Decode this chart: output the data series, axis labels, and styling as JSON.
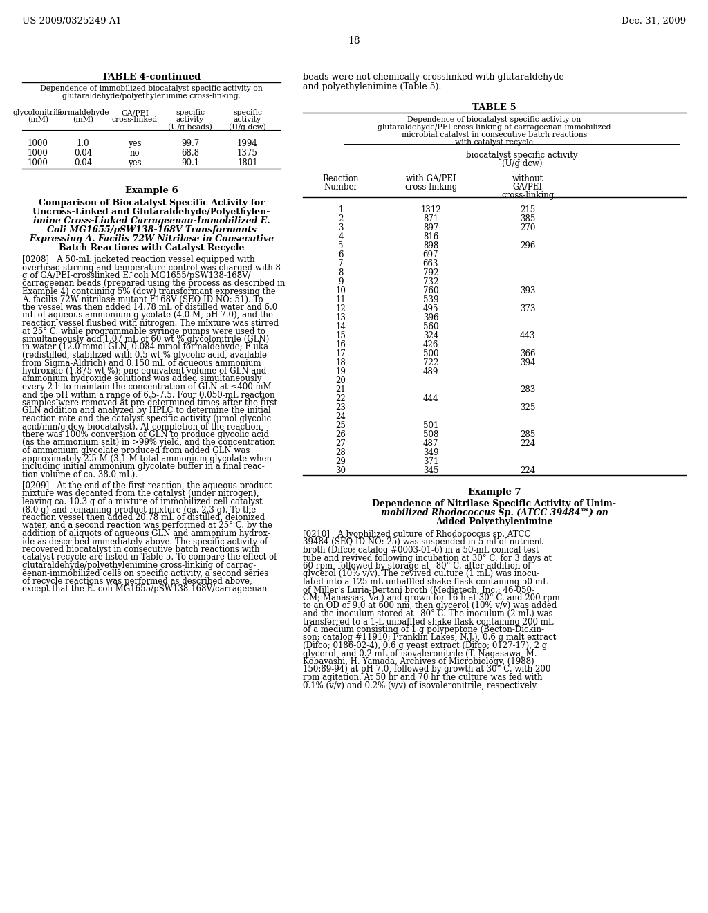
{
  "page_number": "18",
  "patent_left": "US 2009/0325249 A1",
  "patent_right": "Dec. 31, 2009",
  "bg_color": "#ffffff",
  "table4_title": "TABLE 4-continued",
  "table4_subtitle1": "Dependence of immobilized biocatalyst specific activity on",
  "table4_subtitle2": "glutaraldehyde/polyethylenimine cross-linking.",
  "table4_headers": [
    "glycolonitrile\n(mM)",
    "formaldehyde\n(mM)",
    "GA/PEI\ncross-linked",
    "specific\nactivity\n(U/g beads)",
    "specific\nactivity\n(U/g dcw)"
  ],
  "table4_rows": [
    [
      "1000",
      "1.0",
      "yes",
      "99.7",
      "1994"
    ],
    [
      "1000",
      "0.04",
      "no",
      "68.8",
      "1375"
    ],
    [
      "1000",
      "0.04",
      "yes",
      "90.1",
      "1801"
    ]
  ],
  "example6_title": "Example 6",
  "example6_lines": [
    "Comparison of Biocatalyst Specific Activity for",
    "Uncross-Linked and Glutaraldehyde/Polyethylen-",
    "imine Cross-Linked Carrageenan-Immobilized E.",
    "Coli MG1655/pSW138-168V Transformants",
    "Expressing A. Facilis 72W Nitrilase in Consecutive",
    "Batch Reactions with Catalyst Recycle"
  ],
  "example6_italic_words": [
    "E.",
    "Coli",
    "A.",
    "Facilis"
  ],
  "para0208_lines": [
    "[0208]   A 50-mL jacketed reaction vessel equipped with",
    "overhead stirring and temperature control was charged with 8",
    "g of GA/PEI-crosslinked E. coli MG1655/pSW138-168V/",
    "carrageenan beads (prepared using the process as described in",
    "Example 4) containing 5% (dcw) transformant expressing the",
    "A. facilis 72W nitrilase mutant F168V (SEQ ID NO: 51). To",
    "the vessel was then added 14.78 mL of distilled water and 6.0",
    "mL of aqueous ammonium glycolate (4.0 M, pH 7.0), and the",
    "reaction vessel flushed with nitrogen. The mixture was stirred",
    "at 25° C. while programmable syringe pumps were used to",
    "simultaneously add 1.07 mL of 60 wt % glycolonitrile (GLN)",
    "in water (12.0 mmol GLN, 0.084 mmol formaldehyde; Fluka",
    "(redistilled, stabilized with 0.5 wt % glycolic acid, available",
    "from Sigma-Aldrich) and 0.150 mL of aqueous ammonium",
    "hydroxide (1.875 wt %); one equivalent volume of GLN and",
    "ammonium hydroxide solutions was added simultaneously",
    "every 2 h to maintain the concentration of GLN at ≤400 mM",
    "and the pH within a range of 6.5-7.5. Four 0.050-mL reaction",
    "samples were removed at pre-determined times after the first",
    "GLN addition and analyzed by HPLC to determine the initial",
    "reaction rate and the catalyst specific activity (μmol glycolic",
    "acid/min/g dcw biocatalyst). At completion of the reaction,",
    "there was 100% conversion of GLN to produce glycolic acid",
    "(as the ammonium salt) in >99% yield, and the concentration",
    "of ammonium glycolate produced from added GLN was",
    "approximately 2.5 M (3.1 M total ammonium glycolate when",
    "including initial ammonium glycolate buffer in a final reac-",
    "tion volume of ca. 38.0 mL)."
  ],
  "para0209_lines": [
    "[0209]   At the end of the first reaction, the aqueous product",
    "mixture was decanted from the catalyst (under nitrogen),",
    "leaving ca. 10.3 g of a mixture of immobilized cell catalyst",
    "(8.0 g) and remaining product mixture (ca. 2.3 g). To the",
    "reaction vessel then added 20.78 mL of distilled, deionized",
    "water, and a second reaction was performed at 25° C. by the",
    "addition of aliquots of aqueous GLN and ammonium hydrox-",
    "ide as described immediately above. The specific activity of",
    "recovered biocatalyst in consecutive batch reactions with",
    "catalyst recycle are listed in Table 5. To compare the effect of",
    "glutaraldehyde/polyethylenimine cross-linking of carrag-",
    "eenan-immobilized cells on specific activity, a second series",
    "of recycle reactions was performed as described above,",
    "except that the E. coli MG1655/pSW138-168V/carrageenan"
  ],
  "right_intro1": "beads were not chemically-crosslinked with glutaraldehyde",
  "right_intro2": "and polyethylenimine (Table 5).",
  "table5_title": "TABLE 5",
  "table5_sub1": "Dependence of biocatalyst specific activity on",
  "table5_sub2": "glutaraldehyde/PEI cross-linking of carrageenan-immobilized",
  "table5_sub3": "microbial catalyst in consecutive batch reactions",
  "table5_sub4": "with catalyst recycle",
  "table5_bsa1": "biocatalyst specific activity",
  "table5_bsa2": "(U/g dcw)",
  "table5_h1": "Reaction",
  "table5_h1b": "Number",
  "table5_h2": "with GA/PEI",
  "table5_h2b": "cross-linking",
  "table5_h3": "without",
  "table5_h3b": "GA/PEI",
  "table5_h3c": "cross-linking",
  "table5_rows": [
    [
      "1",
      "1312",
      "215"
    ],
    [
      "2",
      "871",
      "385"
    ],
    [
      "3",
      "897",
      "270"
    ],
    [
      "4",
      "816",
      ""
    ],
    [
      "5",
      "898",
      "296"
    ],
    [
      "6",
      "697",
      ""
    ],
    [
      "7",
      "663",
      ""
    ],
    [
      "8",
      "792",
      ""
    ],
    [
      "9",
      "732",
      ""
    ],
    [
      "10",
      "760",
      "393"
    ],
    [
      "11",
      "539",
      ""
    ],
    [
      "12",
      "495",
      "373"
    ],
    [
      "13",
      "396",
      ""
    ],
    [
      "14",
      "560",
      ""
    ],
    [
      "15",
      "324",
      "443"
    ],
    [
      "16",
      "426",
      ""
    ],
    [
      "17",
      "500",
      "366"
    ],
    [
      "18",
      "722",
      "394"
    ],
    [
      "19",
      "489",
      ""
    ],
    [
      "20",
      "",
      ""
    ],
    [
      "21",
      "",
      "283"
    ],
    [
      "22",
      "444",
      ""
    ],
    [
      "23",
      "",
      "325"
    ],
    [
      "24",
      "",
      ""
    ],
    [
      "25",
      "501",
      ""
    ],
    [
      "26",
      "508",
      "285"
    ],
    [
      "27",
      "487",
      "224"
    ],
    [
      "28",
      "349",
      ""
    ],
    [
      "29",
      "371",
      ""
    ],
    [
      "30",
      "345",
      "224"
    ]
  ],
  "example7_title": "Example 7",
  "example7_lines": [
    "Dependence of Nitrilase Specific Activity of Unim-",
    "mobilized Rhodococcus Sp. (ATCC 39484™) on",
    "Added Polyethylenimine"
  ],
  "para0210_lines": [
    "[0210]   A lyophilized culture of Rhodococcus sp. ATCC",
    "39484 (SEQ ID NO: 25) was suspended in 5 ml of nutrient",
    "broth (Difco; catalog #0003-01-6) in a 50-mL conical test",
    "tube and revived following incubation at 30° C. for 3 days at",
    "60 rpm, followed by storage at –80° C. after addition of",
    "glycerol (10% v/v). The revived culture (1 mL) was inocu-",
    "lated into a 125-mL unbaffled shake flask containing 50 mL",
    "of Miller's Luria-Bertani broth (Mediatech, Inc.; 46-050-",
    "CM; Manassas, Va.) and grown for 16 h at 30° C. and 200 rpm",
    "to an OD of 9.0 at 600 nm, then glycerol (10% v/v) was added",
    "and the inoculum stored at –80° C. The inoculum (2 mL) was",
    "transferred to a 1-L unbaffled shake flask containing 200 mL",
    "of a medium consisting of 1 g polypeptone (Becton-Dickin-",
    "son; catalog #11910; Franklin Lakes, N.J.), 0.6 g malt extract",
    "(Difco; 0186-02-4), 0.6 g yeast extract (Difco; 0127-17), 2 g",
    "glycerol, and 0.2 mL of isovaleronitrile (T. Nagasawa, M.",
    "Kobayashi, H. Yamada, Archives of Microbiology, (1988)",
    "150:89-94) at pH 7.0, followed by growth at 30° C. with 200",
    "rpm agitation. At 50 hr and 70 hr the culture was fed with",
    "0.1% (v/v) and 0.2% (v/v) of isovaleronitrile, respectively."
  ]
}
